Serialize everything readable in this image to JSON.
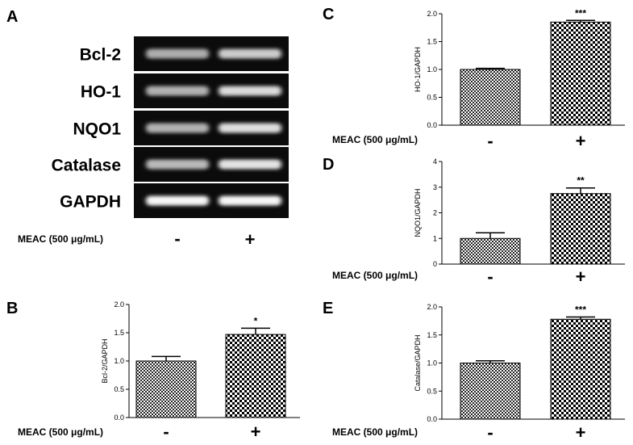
{
  "gel": {
    "letter": "A",
    "treatment_label": "MEAC (500 μg/mL)",
    "lanes": [
      "-",
      "+"
    ],
    "rows": [
      {
        "name": "Bcl-2",
        "intensity": [
          0.55,
          0.72
        ]
      },
      {
        "name": "HO-1",
        "intensity": [
          0.58,
          0.8
        ]
      },
      {
        "name": "NQO1",
        "intensity": [
          0.58,
          0.82
        ]
      },
      {
        "name": "Catalase",
        "intensity": [
          0.62,
          0.85
        ]
      },
      {
        "name": "GAPDH",
        "intensity": [
          0.95,
          0.95
        ]
      }
    ]
  },
  "chart_data": [
    {
      "type": "bar",
      "letter": "B",
      "ylabel": "Bcl-2/GAPDH",
      "ylim": [
        0,
        2.0
      ],
      "yticks": [
        "0.0",
        "0.5",
        "1.0",
        "1.5",
        "2.0"
      ],
      "categories": [
        "-",
        "+"
      ],
      "values": [
        1.0,
        1.47
      ],
      "errors": [
        0.08,
        0.11
      ],
      "significance": [
        "",
        "*"
      ],
      "treatment_label": "MEAC (500 μg/mL)"
    },
    {
      "type": "bar",
      "letter": "C",
      "ylabel": "HO-1/GAPDH",
      "ylim": [
        0,
        2.0
      ],
      "yticks": [
        "0.0",
        "0.5",
        "1.0",
        "1.5",
        "2.0"
      ],
      "categories": [
        "-",
        "+"
      ],
      "values": [
        1.0,
        1.85
      ],
      "errors": [
        0.02,
        0.03
      ],
      "significance": [
        "",
        "***"
      ],
      "treatment_label": "MEAC (500 μg/mL)"
    },
    {
      "type": "bar",
      "letter": "D",
      "ylabel": "NQO1/GAPDH",
      "ylim": [
        0,
        4
      ],
      "yticks": [
        "0",
        "1",
        "2",
        "3",
        "4"
      ],
      "categories": [
        "-",
        "+"
      ],
      "values": [
        1.0,
        2.75
      ],
      "errors": [
        0.22,
        0.22
      ],
      "significance": [
        "",
        "**"
      ],
      "treatment_label": "MEAC (500 μg/mL)"
    },
    {
      "type": "bar",
      "letter": "E",
      "ylabel": "Catalase/GAPDH",
      "ylim": [
        0,
        2.0
      ],
      "yticks": [
        "0.0",
        "0.5",
        "1.0",
        "1.5",
        "2.0"
      ],
      "categories": [
        "-",
        "+"
      ],
      "values": [
        1.0,
        1.78
      ],
      "errors": [
        0.04,
        0.04
      ],
      "significance": [
        "",
        "***"
      ],
      "treatment_label": "MEAC (500 μg/mL)"
    }
  ]
}
